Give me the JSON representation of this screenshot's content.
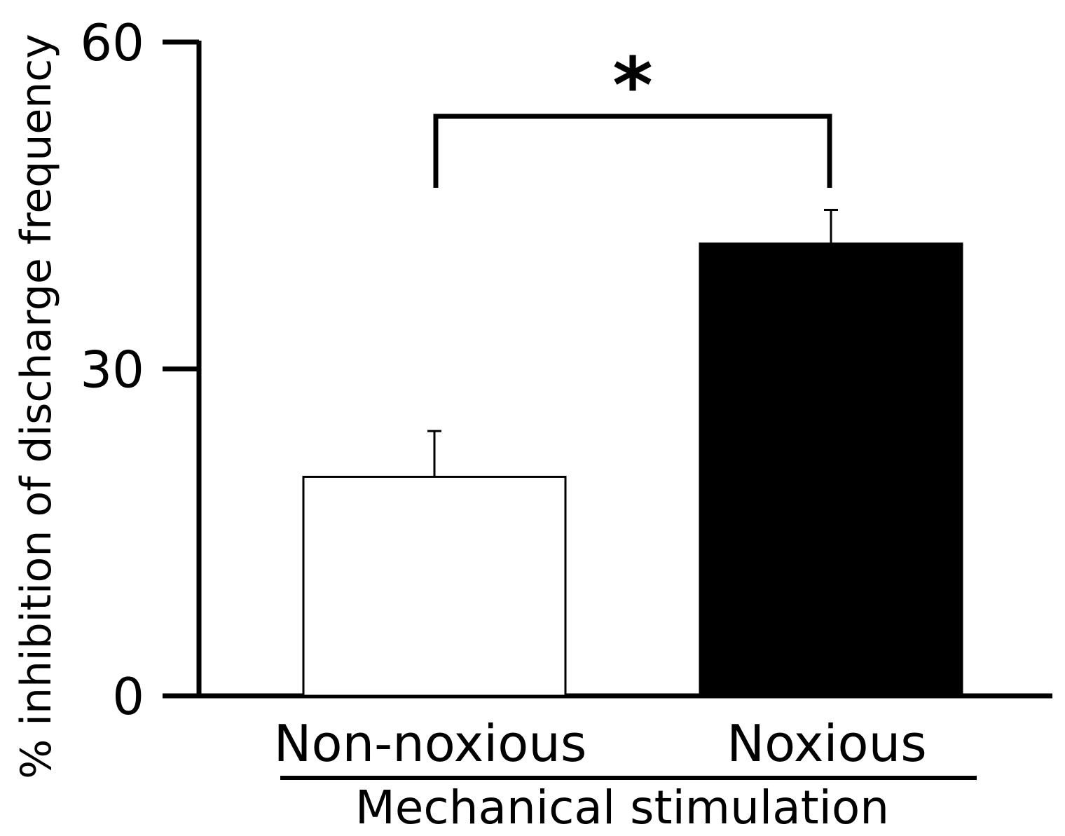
{
  "chart_data": {
    "type": "bar",
    "title": "",
    "xlabel": "Mechanical stimulation",
    "ylabel": "% inhibition of discharge frequency",
    "ylim": [
      0,
      60
    ],
    "yticks": [
      0,
      30,
      60
    ],
    "categories": [
      "Non-noxious",
      "Noxious"
    ],
    "values": [
      20.1,
      41.5
    ],
    "errors": [
      4.2,
      3.1
    ],
    "bar_colors": [
      "#ffffff",
      "#000000"
    ],
    "significance": {
      "from": 0,
      "to": 1,
      "label": "*"
    },
    "grid": false,
    "legend": "none"
  }
}
